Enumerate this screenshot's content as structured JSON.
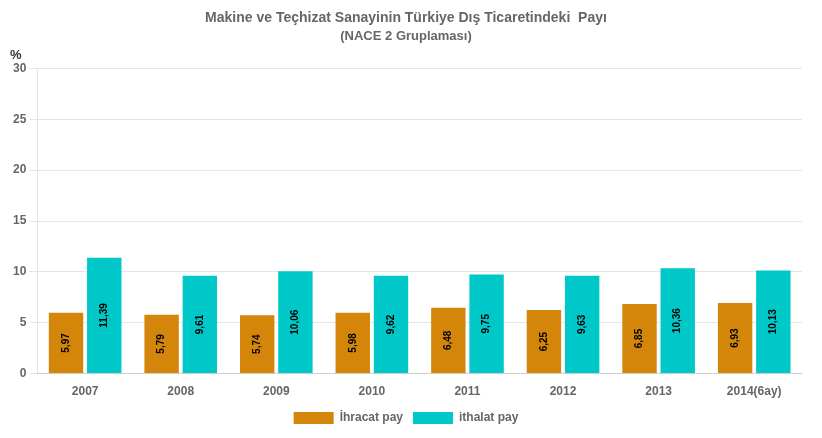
{
  "chart_data": {
    "type": "bar",
    "title": "Makine ve Teçhizat Sanayinin Türkiye Dış Ticaretindeki  Payı",
    "subtitle": "(NACE 2 Gruplaması)",
    "ylabel": "%",
    "categories": [
      "2007",
      "2008",
      "2009",
      "2010",
      "2011",
      "2012",
      "2013",
      "2014(6ay)"
    ],
    "series": [
      {
        "name": "İhracat pay",
        "color": "#D4860B",
        "values": [
          5.97,
          5.79,
          5.74,
          5.98,
          6.48,
          6.25,
          6.85,
          6.93
        ],
        "value_labels": [
          "5,97",
          "5,79",
          "5,74",
          "5,98",
          "6,48",
          "6,25",
          "6,85",
          "6,93"
        ]
      },
      {
        "name": "ithalat pay",
        "color": "#00C8C8",
        "values": [
          11.39,
          9.61,
          10.06,
          9.62,
          9.75,
          9.63,
          10.36,
          10.13
        ],
        "value_labels": [
          "11,39",
          "9,61",
          "10,06",
          "9,62",
          "9,75",
          "9,63",
          "10,36",
          "10,13"
        ]
      }
    ],
    "ylim": [
      0,
      30
    ],
    "yticks": [
      0,
      5,
      10,
      15,
      20,
      25,
      30
    ],
    "grid": true,
    "legend": "bottom",
    "data_labels": true
  }
}
